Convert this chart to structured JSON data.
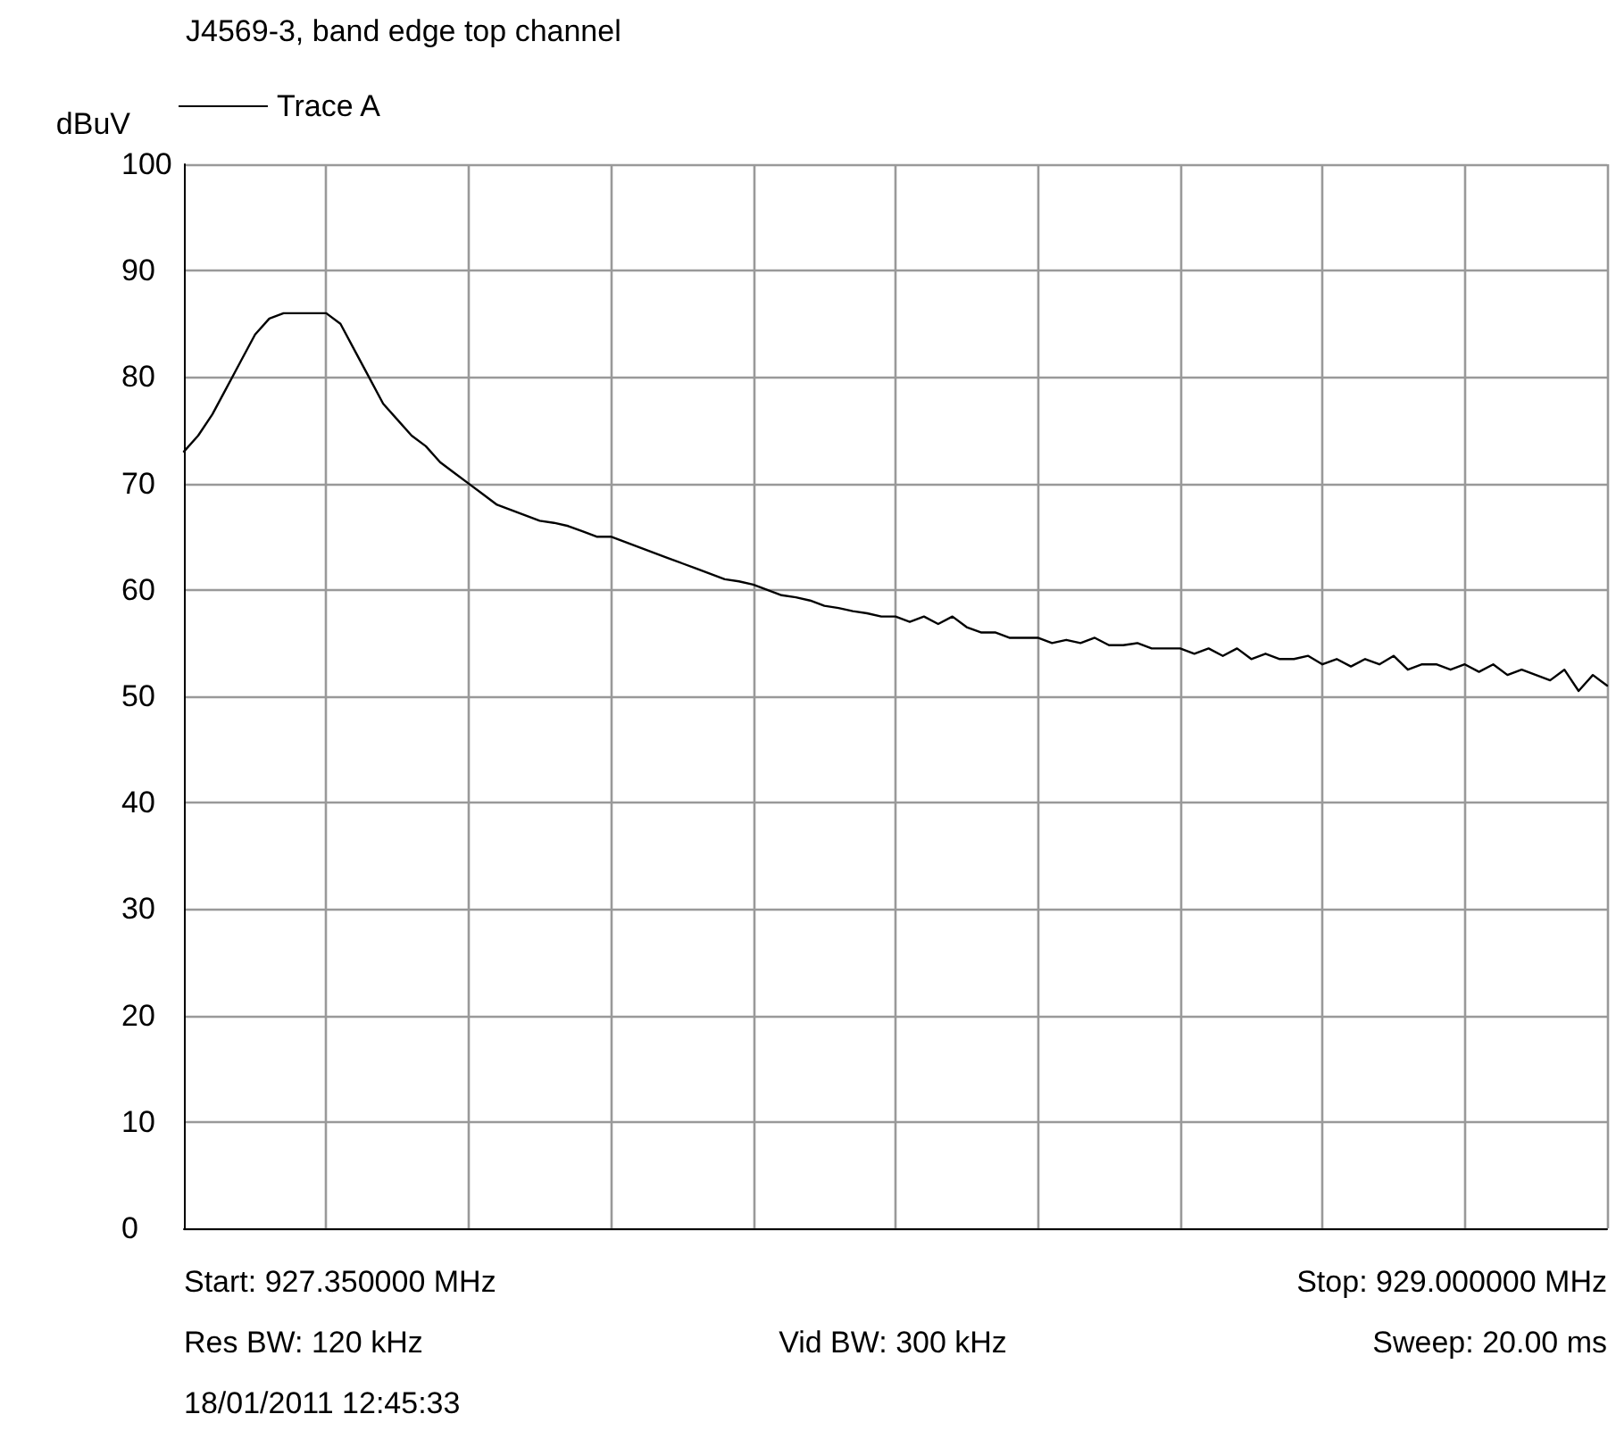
{
  "chart_data": {
    "type": "line",
    "title": "J4569-3, band edge top channel",
    "ylabel": "dBuV",
    "categories": [
      null,
      null,
      null,
      null,
      null,
      null,
      null,
      null,
      null,
      null,
      null,
      null,
      null,
      null,
      null,
      null,
      null,
      null,
      null,
      null,
      null,
      null,
      null,
      null,
      null,
      null,
      null,
      null,
      null,
      null,
      null,
      null,
      null,
      null,
      null,
      null,
      null,
      null,
      null,
      null,
      null,
      null,
      null,
      null,
      null,
      null,
      null,
      null,
      null,
      null,
      null,
      null,
      null,
      null,
      null,
      null,
      null,
      null,
      null,
      null,
      null,
      null,
      null,
      null,
      null,
      null,
      null,
      null,
      null,
      null,
      null,
      null,
      null,
      null,
      null,
      null,
      null,
      null,
      null,
      null,
      null,
      null,
      null,
      null,
      null,
      null,
      null,
      null,
      null,
      null,
      null,
      null,
      null,
      null,
      null,
      null,
      null,
      null,
      null,
      null,
      null
    ],
    "series": [
      {
        "name": "Trace A",
        "color": "#000000",
        "values": [
          73,
          74.5,
          76.5,
          79,
          81.5,
          84,
          85.5,
          86,
          86,
          86,
          86,
          85,
          82.5,
          80,
          77.5,
          76,
          74.5,
          73.5,
          72,
          71,
          70,
          69,
          68,
          67.5,
          67,
          66.5,
          66.3,
          66,
          65.5,
          65,
          65,
          64.5,
          64,
          63.5,
          63,
          62.5,
          62,
          61.5,
          61,
          60.8,
          60.5,
          60,
          59.5,
          59.3,
          59,
          58.5,
          58.3,
          58,
          57.8,
          57.5,
          57.5,
          57,
          57.5,
          56.8,
          57.5,
          56.5,
          56,
          56,
          55.5,
          55.5,
          55.5,
          55,
          55.3,
          55,
          55.5,
          54.8,
          54.8,
          55,
          54.5,
          54.5,
          54.5,
          54,
          54.5,
          53.8,
          54.5,
          53.5,
          54,
          53.5,
          53.5,
          53.8,
          53,
          53.5,
          52.8,
          53.5,
          53,
          53.8,
          52.5,
          53,
          53,
          52.5,
          53,
          52.3,
          53,
          52,
          52.5,
          52,
          51.5,
          52.5,
          50.5,
          52,
          51
        ]
      }
    ],
    "ylim": [
      0,
      100
    ],
    "yticks": [
      0,
      10,
      20,
      30,
      40,
      50,
      60,
      70,
      80,
      90,
      100
    ],
    "grid": true,
    "legend": "top left",
    "marker": "none",
    "line_style": "solid",
    "annotations": [
      "Start: 927.350000 MHz",
      "Stop: 929.000000 MHz",
      "Res BW: 120 kHz",
      "Vid BW: 300 kHz",
      "Sweep: 20.00 ms",
      "18/01/2011 12:45:33"
    ]
  }
}
